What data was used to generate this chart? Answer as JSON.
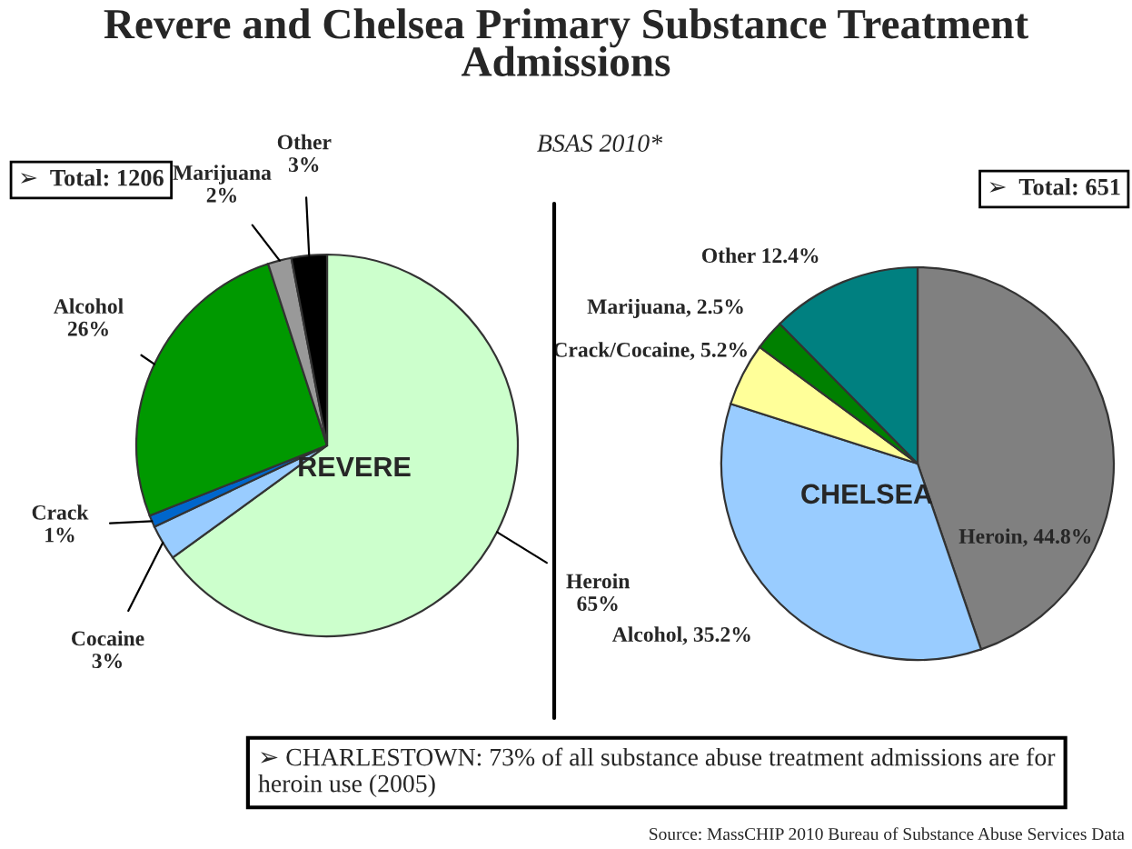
{
  "chart_data": [
    {
      "type": "pie",
      "title": "Revere and Chelsea Primary Substance Treatment Admissions",
      "subtitle": "BSAS 2010*",
      "categories": [
        "Heroin",
        "Cocaine",
        "Crack",
        "Alcohol",
        "Marijuana",
        "Other"
      ],
      "values": [
        65,
        3,
        1,
        26,
        2,
        3
      ],
      "value_labels": [
        "65%",
        "3%",
        "1%",
        "26%",
        "2%",
        "3%"
      ],
      "colors": [
        "#ccffcc",
        "#99ccff",
        "#0066cc",
        "#009900",
        "#999999",
        "#000000"
      ],
      "annotations": [
        "➢  Total: 1206",
        "REVERE"
      ]
    },
    {
      "type": "pie",
      "categories": [
        "Heroin",
        "Alcohol",
        "Crack/Cocaine",
        "Marijuana",
        "Other"
      ],
      "values": [
        44.8,
        35.2,
        5.2,
        2.5,
        12.4
      ],
      "value_labels": [
        "44.8%",
        "35.2%",
        "5.2%",
        "2.5%",
        "12.4%"
      ],
      "colors": [
        "#808080",
        "#99ccff",
        "#ffff99",
        "#008000",
        "#008080"
      ],
      "annotations": [
        "➢  Total: 651",
        "CHELSEA",
        "➢ CHARLESTOWN: 73% of all substance abuse treatment admissions are for heroin use (2005)",
        "Source: MassCHIP 2010 Bureau of Substance Abuse Services Data"
      ]
    }
  ]
}
